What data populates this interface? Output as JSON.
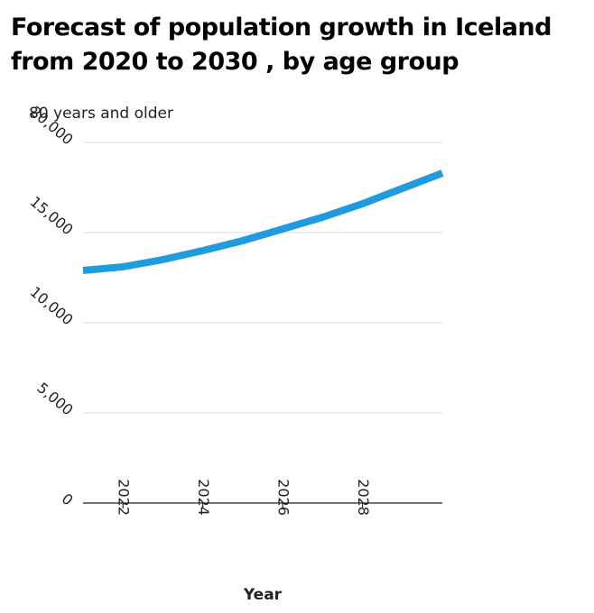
{
  "chart_data": {
    "type": "line",
    "title": "Forecast of population growth in Iceland\nfrom 2020 to 2030 , by age group",
    "xlabel": "Year",
    "ylabel": "80 years and older",
    "xlim": [
      2021,
      2030
    ],
    "ylim": [
      0,
      20000
    ],
    "x_ticks": [
      2022,
      2024,
      2026,
      2028
    ],
    "x_tick_labels": [
      "2022",
      "2024",
      "2026",
      "2028"
    ],
    "y_ticks": [
      0,
      5000,
      10000,
      15000,
      20000
    ],
    "y_tick_labels": [
      "0",
      "5,000",
      "10,000",
      "15,000",
      "20,000"
    ],
    "grid": "horizontal",
    "series": [
      {
        "color": "#1f9bde",
        "x": [
          2021,
          2022,
          2023,
          2024,
          2025,
          2026,
          2027,
          2028,
          2029,
          2030
        ],
        "values": [
          12900,
          13100,
          13500,
          14000,
          14550,
          15200,
          15850,
          16600,
          17450,
          18300
        ]
      }
    ]
  }
}
